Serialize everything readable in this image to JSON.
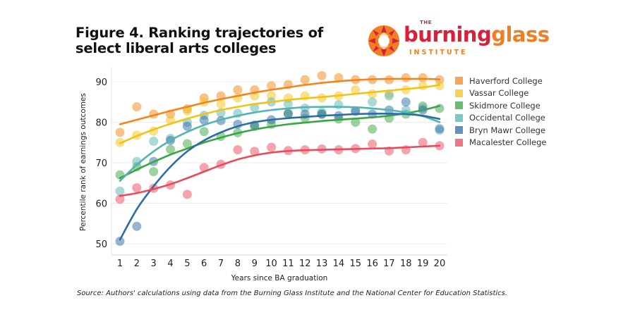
{
  "title": "Figure 4. Ranking trajectories of select liberal arts colleges",
  "logo": {
    "the": "THE",
    "word1": "burning",
    "word2": "glass",
    "institute": "INSTITUTE"
  },
  "source": "Source: Authors' calculations using data from the Burning Glass Institute and the National Center for Education Statistics.",
  "chart_data": {
    "type": "scatter",
    "title": "Figure 4. Ranking trajectories of select liberal arts colleges",
    "xlabel": "Years since BA graduation",
    "ylabel": "Percentile rank of earnings outcomes",
    "x": [
      1,
      2,
      3,
      4,
      5,
      6,
      7,
      8,
      9,
      10,
      11,
      12,
      13,
      14,
      15,
      16,
      17,
      18,
      19,
      20
    ],
    "xlim": [
      1,
      20
    ],
    "ylim": [
      48,
      93
    ],
    "yticks": [
      50,
      60,
      70,
      80,
      90
    ],
    "grid": true,
    "legend_position": "right",
    "trend_lines": "smoothed fit per series",
    "series": [
      {
        "name": "Haverford College",
        "color": "#f58518",
        "values": [
          77.5,
          83.8,
          82,
          82,
          83.3,
          86,
          86.5,
          88,
          88,
          89,
          89.3,
          90.5,
          91.5,
          91,
          90.5,
          90.5,
          90.5,
          91,
          91,
          90.5
        ],
        "trend": [
          79.5,
          80.6,
          81.7,
          82.8,
          83.8,
          84.8,
          85.7,
          86.5,
          87.3,
          88,
          88.6,
          89.2,
          89.7,
          90.1,
          90.4,
          90.6,
          90.7,
          90.7,
          90.7,
          90.6
        ]
      },
      {
        "name": "Vassar College",
        "color": "#f2c314",
        "values": [
          75,
          76.8,
          77.8,
          80.5,
          82.8,
          85,
          84.5,
          86,
          86.5,
          86.5,
          86,
          86.5,
          86,
          86.5,
          88,
          87,
          87,
          88,
          89,
          89
        ],
        "trend": [
          74.8,
          76.6,
          78.2,
          79.6,
          80.9,
          82,
          83,
          83.8,
          84.5,
          85,
          85.5,
          85.9,
          86.2,
          86.6,
          87,
          87.4,
          87.8,
          88.2,
          88.6,
          89.2
        ]
      },
      {
        "name": "Skidmore College",
        "color": "#3aa544",
        "values": [
          67,
          69,
          67.8,
          73.3,
          74.7,
          77.7,
          76.5,
          77.4,
          79,
          79.5,
          82,
          81,
          82,
          80.8,
          80,
          78.3,
          81,
          82,
          84,
          83.4
        ],
        "trend": [
          66.2,
          68.3,
          70.2,
          72,
          73.5,
          75,
          76.2,
          77.3,
          78.2,
          78.9,
          79.5,
          79.9,
          80.3,
          80.6,
          80.9,
          81.2,
          81.6,
          82.2,
          83,
          84
        ]
      },
      {
        "name": "Occidental College",
        "color": "#55b4b0",
        "values": [
          63,
          70.3,
          75.3,
          76,
          80,
          81.7,
          82.3,
          82.2,
          83.6,
          85,
          84.5,
          83.5,
          82.5,
          84.3,
          82.8,
          85,
          86.5,
          83,
          83.5,
          78
        ],
        "trend": [
          65.5,
          69.5,
          72.8,
          75.5,
          77.6,
          79.3,
          80.6,
          81.6,
          82.4,
          83,
          83.4,
          83.7,
          83.8,
          83.8,
          83.7,
          83.4,
          83,
          82.4,
          81.5,
          80
        ]
      },
      {
        "name": "Bryn Mawr College",
        "color": "#2e6ca4",
        "values": [
          50.6,
          54.3,
          70.3,
          75.5,
          79,
          80.5,
          80.4,
          79.5,
          79.3,
          80.6,
          82.2,
          82,
          82,
          81.6,
          82.7,
          82,
          83,
          85,
          83,
          78.4
        ],
        "trend": [
          51,
          58.5,
          64.2,
          69,
          72.8,
          75.5,
          77.5,
          79,
          80,
          80.6,
          81,
          81.3,
          81.6,
          81.8,
          82,
          82.1,
          82.1,
          82,
          81.6,
          80.8
        ]
      },
      {
        "name": "Macalester College",
        "color": "#ea4a59",
        "values": [
          61,
          63.8,
          63.7,
          64.5,
          62.2,
          68.8,
          69.6,
          73.2,
          72.8,
          73.8,
          73,
          73.2,
          73.4,
          73.2,
          73.5,
          74.6,
          72.9,
          73.2,
          75,
          74.2
        ],
        "trend": [
          61.8,
          62.5,
          63.5,
          64.7,
          66.2,
          67.8,
          69.4,
          70.8,
          71.8,
          72.5,
          72.9,
          73.1,
          73.2,
          73.3,
          73.4,
          73.5,
          73.6,
          73.8,
          74,
          74.2
        ]
      }
    ]
  }
}
